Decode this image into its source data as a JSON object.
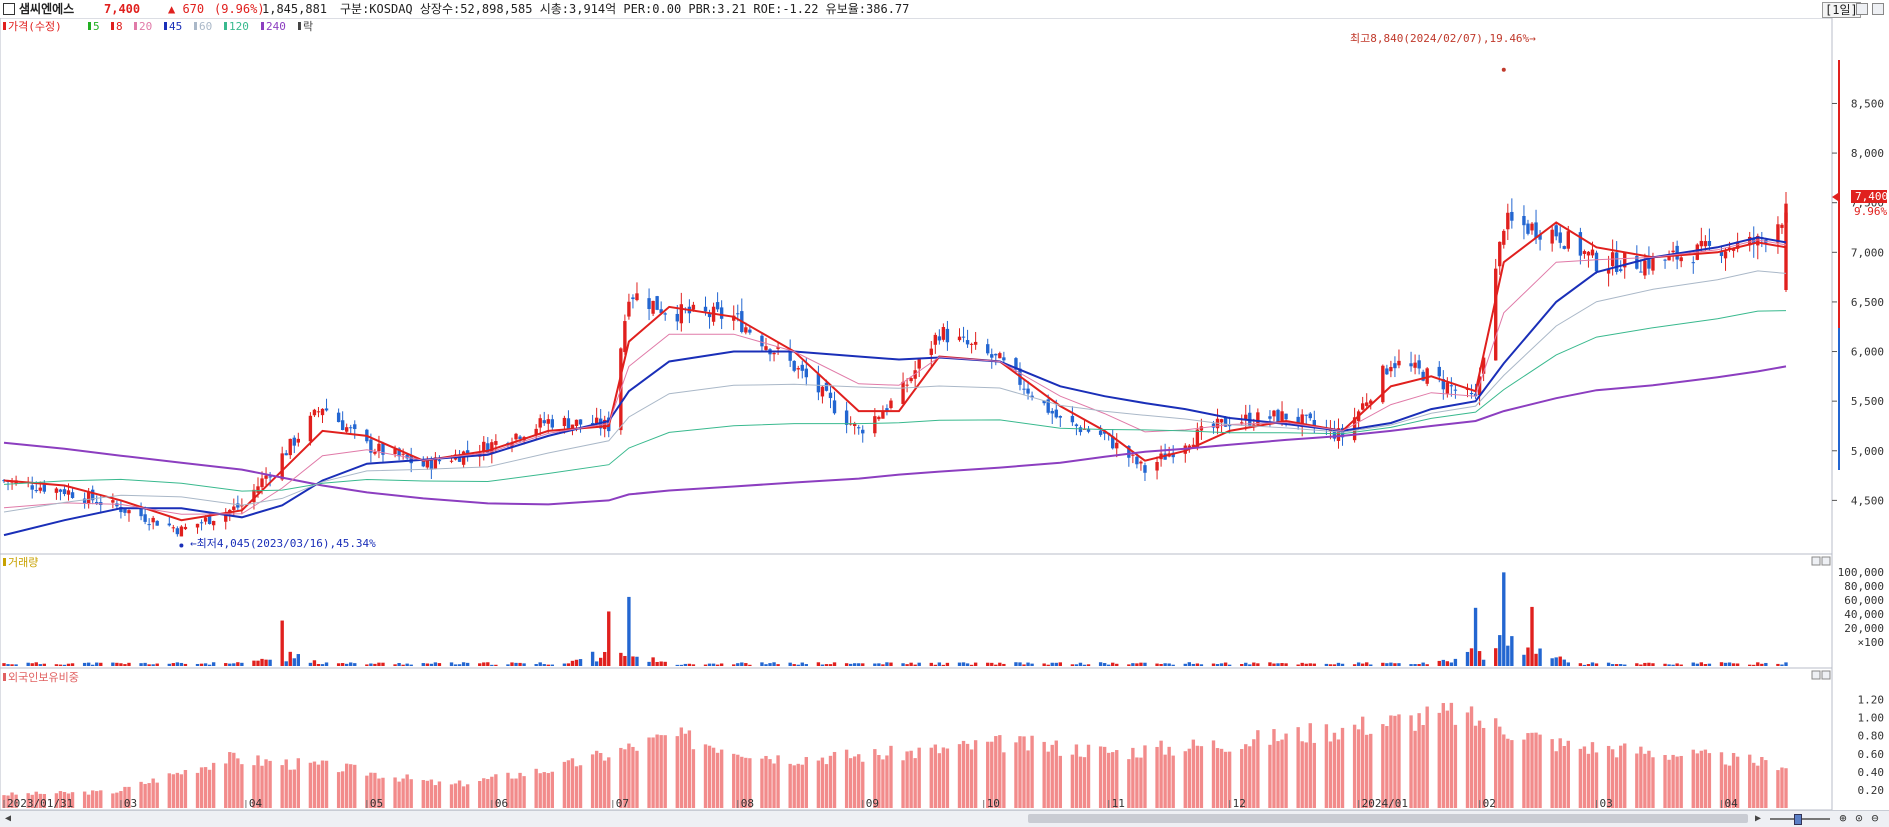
{
  "header": {
    "name": "샘씨엔에스",
    "price": "7,400",
    "change": "▲ 670",
    "change_pct": "(9.96%)",
    "volume": "1,845,881",
    "info": "구분:KOSDAQ 상장수:52,898,585 시총:3,914억 PER:0.00 PBR:3.21 ROE:-1.22 유보율:386.77",
    "interval": "[1일]"
  },
  "legends": {
    "price_label": "가격(수정)",
    "ma_items": [
      {
        "label": "5",
        "color": "#22b022"
      },
      {
        "label": "8",
        "color": "#e0201e"
      },
      {
        "label": "20",
        "color": "#e07aa8"
      },
      {
        "label": "45",
        "color": "#1a2fb8"
      },
      {
        "label": "60",
        "color": "#aab8c8"
      },
      {
        "label": "120",
        "color": "#39b98e"
      },
      {
        "label": "240",
        "color": "#8c3ec0"
      },
      {
        "label": "락",
        "color": "#444444"
      }
    ],
    "volume_label": "거래량",
    "foreign_label": "외국인보유비중"
  },
  "annotations": {
    "high": "최고8,840(2024/02/07),19.46%→",
    "low": "←최저4,045(2023/03/16),45.34%",
    "current_price": "7,400",
    "current_pct": "9.96%"
  },
  "colors": {
    "up": "#e0201e",
    "down": "#2366d1",
    "foreign_bar": "#f28b8b",
    "ma240": "#8c3ec0",
    "ma45": "#1a2fb8",
    "ma8": "#e0201e"
  },
  "chart_data": [
    {
      "type": "line",
      "title": "가격(수정)",
      "x_start": "2023-01-31",
      "x": [
        "2023-01-31",
        "2023-02-15",
        "2023-03-01",
        "2023-03-16",
        "2023-03-31",
        "2023-04-10",
        "2023-04-20",
        "2023-05-01",
        "2023-05-15",
        "2023-05-31",
        "2023-06-15",
        "2023-06-30",
        "2023-07-05",
        "2023-07-15",
        "2023-07-31",
        "2023-08-15",
        "2023-08-31",
        "2023-09-10",
        "2023-09-20",
        "2023-10-05",
        "2023-10-20",
        "2023-10-31",
        "2023-11-10",
        "2023-11-20",
        "2023-12-01",
        "2023-12-15",
        "2023-12-29",
        "2024-01-10",
        "2024-01-20",
        "2024-01-31",
        "2024-02-07",
        "2024-02-20",
        "2024-03-01",
        "2024-03-15",
        "2024-03-31",
        "2024-04-10",
        "2024-04-17"
      ],
      "close": [
        4700,
        4600,
        4420,
        4200,
        4450,
        4950,
        5450,
        5050,
        4850,
        5050,
        5300,
        5250,
        6600,
        6400,
        6350,
        5850,
        5200,
        5550,
        6200,
        5900,
        5300,
        5150,
        4800,
        5100,
        5300,
        5350,
        5150,
        5900,
        5750,
        5500,
        7300,
        7200,
        6900,
        6900,
        7050,
        7100,
        7400
      ],
      "ma_series": [
        {
          "name": "8",
          "values": [
            4700,
            4650,
            4500,
            4300,
            4400,
            4800,
            5200,
            5150,
            4900,
            5000,
            5200,
            5250,
            6100,
            6450,
            6350,
            6000,
            5400,
            5400,
            5950,
            5900,
            5450,
            5200,
            4900,
            5000,
            5200,
            5300,
            5200,
            5650,
            5750,
            5600,
            6900,
            7300,
            7050,
            6950,
            7000,
            7100,
            7050
          ]
        },
        {
          "name": "45",
          "values": [
            4150,
            4300,
            4420,
            4420,
            4330,
            4450,
            4700,
            4870,
            4910,
            4960,
            5150,
            5300,
            5600,
            5900,
            6000,
            6000,
            5950,
            5920,
            5940,
            5900,
            5650,
            5550,
            5480,
            5420,
            5330,
            5270,
            5200,
            5280,
            5420,
            5500,
            5880,
            6500,
            6800,
            6950,
            7050,
            7150,
            7100
          ]
        },
        {
          "name": "240",
          "values": [
            5080,
            5020,
            4950,
            4880,
            4810,
            4730,
            4650,
            4580,
            4520,
            4470,
            4460,
            4500,
            4560,
            4600,
            4640,
            4680,
            4720,
            4760,
            4790,
            4830,
            4880,
            4940,
            4990,
            5020,
            5060,
            5110,
            5150,
            5200,
            5250,
            5300,
            5400,
            5530,
            5610,
            5660,
            5740,
            5800,
            5850
          ]
        }
      ],
      "yticks": [
        4500,
        5000,
        5500,
        6000,
        6500,
        7000,
        7500,
        8000,
        8500
      ],
      "ylim": [
        4000,
        9200
      ],
      "xticks": [
        "2023/01/31",
        "03",
        "04",
        "05",
        "06",
        "07",
        "08",
        "09",
        "10",
        "11",
        "12",
        "2024/01",
        "02",
        "03",
        "04"
      ],
      "high": {
        "date": "2024-02-07",
        "value": 8840
      },
      "low": {
        "date": "2023-03-16",
        "value": 4045
      }
    },
    {
      "type": "bar",
      "title": "거래량",
      "yticks": [
        "100,000",
        "80,000",
        "60,000",
        "40,000",
        "20,000",
        "×100"
      ],
      "ylim": [
        0,
        110000
      ],
      "peaks": [
        {
          "date": "2023-04-10",
          "value": 50000
        },
        {
          "date": "2023-06-30",
          "value": 60000
        },
        {
          "date": "2023-07-05",
          "value": 76000
        },
        {
          "date": "2024-01-31",
          "value": 64000
        },
        {
          "date": "2024-02-07",
          "value": 103000
        },
        {
          "date": "2024-02-14",
          "value": 65000
        }
      ]
    },
    {
      "type": "bar",
      "title": "외국인보유비중",
      "yticks": [
        "1.20",
        "1.00",
        "0.80",
        "0.60",
        "0.40",
        "0.20"
      ],
      "ylim": [
        0,
        1.35
      ],
      "values_by_month": [
        0.15,
        0.18,
        0.55,
        0.45,
        0.25,
        0.45,
        0.8,
        0.55,
        0.6,
        0.72,
        0.62,
        0.72,
        0.88,
        1.05,
        0.7,
        0.6,
        0.48
      ]
    }
  ]
}
